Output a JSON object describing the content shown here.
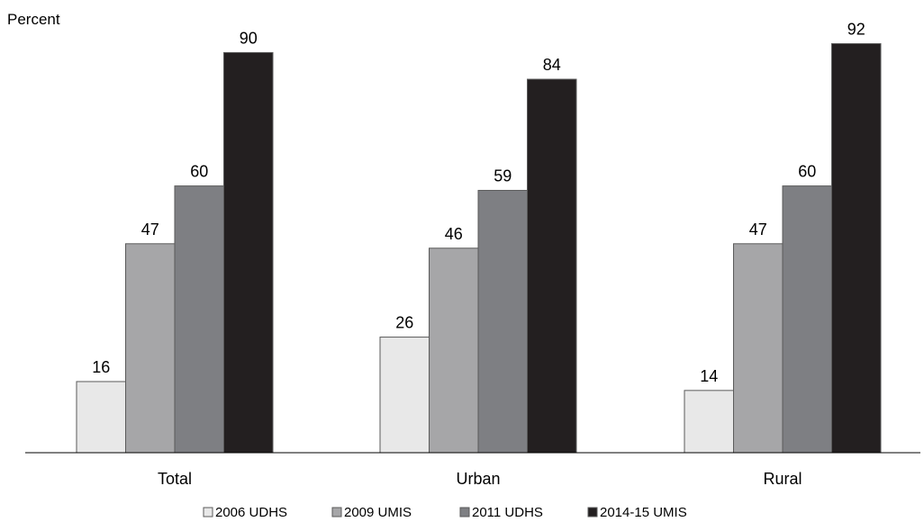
{
  "chart_data": {
    "type": "bar",
    "ylabel": "Percent",
    "categories": [
      "Total",
      "Urban",
      "Rural"
    ],
    "series": [
      {
        "name": "2006 UDHS",
        "color": "#e8e8e8",
        "values": [
          16,
          26,
          14
        ]
      },
      {
        "name": "2009 UMIS",
        "color": "#a6a6a8",
        "values": [
          47,
          46,
          47
        ]
      },
      {
        "name": "2011 UDHS",
        "color": "#7e7f83",
        "values": [
          60,
          59,
          60
        ]
      },
      {
        "name": "2014-15 UMIS",
        "color": "#231f20",
        "values": [
          90,
          84,
          92
        ]
      }
    ],
    "ylim": [
      0,
      100
    ],
    "data_labels": true,
    "grid": false,
    "legend_position": "bottom"
  }
}
